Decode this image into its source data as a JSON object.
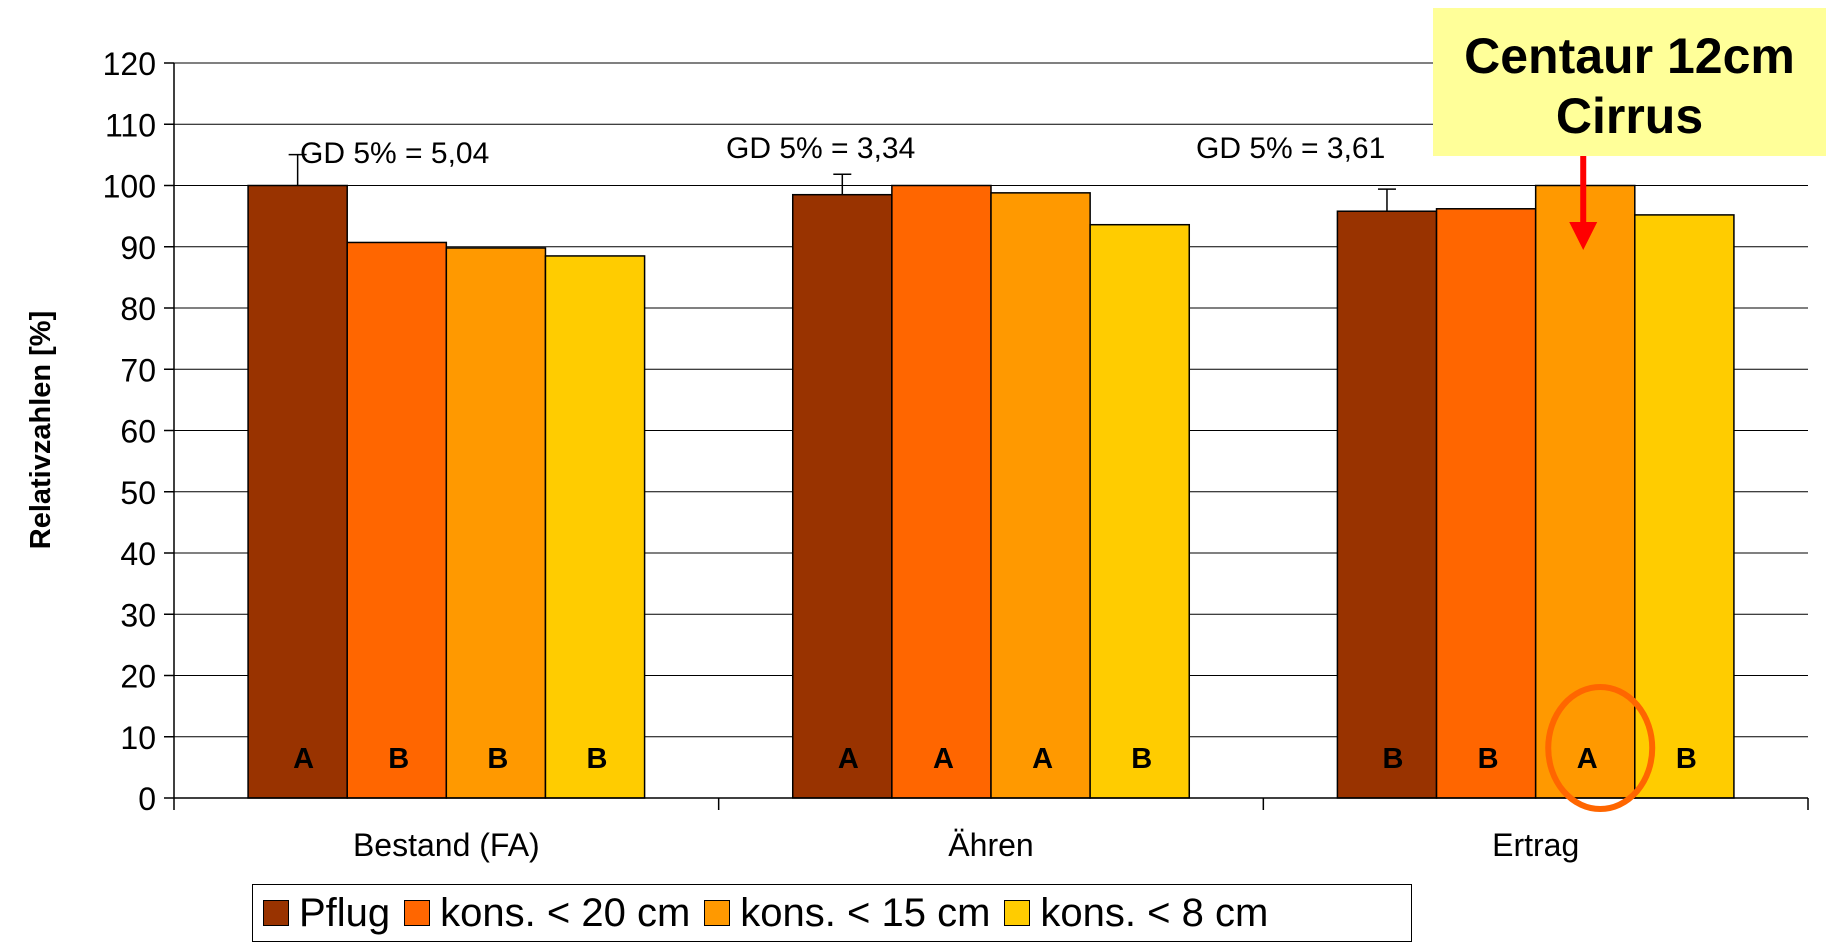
{
  "chart_data": {
    "type": "bar",
    "title": "",
    "xlabel": "",
    "ylabel": "Relativzahlen [%]",
    "ylim": [
      0,
      120
    ],
    "yticks": [
      0,
      10,
      20,
      30,
      40,
      50,
      60,
      70,
      80,
      90,
      100,
      110,
      120
    ],
    "grid": true,
    "legend_position": "bottom",
    "categories": [
      "Bestand (FA)",
      "Ähren",
      "Ertrag"
    ],
    "series": [
      {
        "name": "Pflug",
        "color": "#993300",
        "values": [
          100,
          98.5,
          95.8
        ],
        "letters": [
          "A",
          "A",
          "B"
        ]
      },
      {
        "name": "kons. < 20 cm",
        "color": "#ff6600",
        "values": [
          90.7,
          100,
          96.2
        ],
        "letters": [
          "B",
          "A",
          "B"
        ]
      },
      {
        "name": "kons. < 15 cm",
        "color": "#ff9900",
        "values": [
          89.8,
          98.8,
          100
        ],
        "letters": [
          "B",
          "A",
          "A"
        ]
      },
      {
        "name": "kons. < 8 cm",
        "color": "#ffcc00",
        "values": [
          88.5,
          93.6,
          95.2
        ],
        "letters": [
          "B",
          "B",
          "B"
        ]
      }
    ],
    "error_bars": [
      {
        "category": "Bestand (FA)",
        "series": "Pflug",
        "plus": 5.04
      },
      {
        "category": "Ähren",
        "series": "Pflug",
        "plus": 3.34
      },
      {
        "category": "Ertrag",
        "series": "Pflug",
        "plus": 3.61
      }
    ],
    "annotations": [
      "GD 5% = 5,04",
      "GD 5% = 3,34",
      "GD 5% = 3,61"
    ],
    "highlight": {
      "category": "Ertrag",
      "series": "kons. < 15 cm",
      "color": "#ff6600"
    },
    "arrow_color": "#ff0000"
  },
  "callout": {
    "line1": "Centaur 12cm",
    "line2": "Cirrus",
    "background": "#ffff99"
  }
}
